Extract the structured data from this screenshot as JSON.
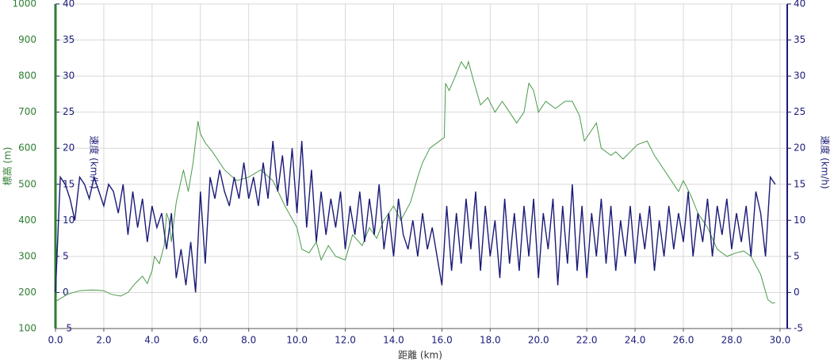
{
  "chart_data": {
    "type": "line",
    "x_label": "距離 (km)",
    "y_label": "標高 (m)",
    "y2_label": "速度 (km/h)",
    "xlim": [
      0,
      30.3
    ],
    "ylim": [
      100,
      1000
    ],
    "y2lim": [
      -5,
      40
    ],
    "xticks": [
      {
        "value": 0,
        "label": "0.0"
      },
      {
        "value": 2,
        "label": "2.0"
      },
      {
        "value": 4,
        "label": "4.0"
      },
      {
        "value": 6,
        "label": "6.0"
      },
      {
        "value": 8,
        "label": "8.0"
      },
      {
        "value": 10,
        "label": "10.0"
      },
      {
        "value": 12,
        "label": "12.0"
      },
      {
        "value": 14,
        "label": "14.0"
      },
      {
        "value": 16,
        "label": "16.0"
      },
      {
        "value": 18,
        "label": "18.0"
      },
      {
        "value": 20,
        "label": "20.0"
      },
      {
        "value": 22,
        "label": "22.0"
      },
      {
        "value": 24,
        "label": "24.0"
      },
      {
        "value": 26,
        "label": "26.0"
      },
      {
        "value": 28,
        "label": "28.0"
      },
      {
        "value": 30,
        "label": "30.0"
      }
    ],
    "yticks": [
      100,
      200,
      300,
      400,
      500,
      600,
      700,
      800,
      900,
      1000
    ],
    "y2ticks": [
      -5,
      0,
      5,
      10,
      15,
      20,
      25,
      30,
      35,
      40
    ],
    "grid": true,
    "series": [
      {
        "color": "#4a9a4a",
        "axis": "y",
        "x": [
          0,
          0.5,
          1.0,
          1.5,
          2.0,
          2.3,
          2.7,
          3.0,
          3.3,
          3.6,
          3.8,
          4.0,
          4.1,
          4.3,
          4.5,
          4.6,
          4.7,
          4.8,
          5.0,
          5.3,
          5.5,
          5.7,
          5.9,
          6.0,
          6.2,
          6.5,
          7.0,
          7.5,
          8.0,
          8.5,
          9.0,
          9.5,
          10.0,
          10.2,
          10.5,
          10.8,
          11.0,
          11.3,
          11.6,
          12.0,
          12.3,
          12.7,
          13.0,
          13.3,
          13.6,
          14.0,
          14.3,
          14.7,
          15.0,
          15.2,
          15.5,
          16.0,
          16.1,
          16.15,
          16.3,
          16.5,
          16.8,
          17.0,
          17.1,
          17.3,
          17.6,
          17.9,
          18.2,
          18.5,
          18.8,
          19.1,
          19.4,
          19.6,
          19.8,
          20.0,
          20.3,
          20.7,
          21.1,
          21.4,
          21.7,
          21.9,
          22.2,
          22.4,
          22.6,
          23.0,
          23.2,
          23.5,
          23.8,
          24.1,
          24.5,
          24.8,
          25.0,
          25.5,
          25.8,
          26.0,
          26.3,
          26.6,
          27.0,
          27.4,
          27.8,
          28.2,
          28.5,
          28.8,
          29.2,
          29.5,
          29.7,
          29.8
        ],
        "values": [
          175,
          195,
          205,
          207,
          205,
          195,
          190,
          200,
          225,
          245,
          225,
          260,
          300,
          280,
          330,
          420,
          400,
          340,
          450,
          540,
          480,
          560,
          675,
          640,
          615,
          590,
          540,
          510,
          520,
          540,
          510,
          440,
          380,
          320,
          310,
          340,
          290,
          330,
          300,
          290,
          360,
          330,
          380,
          350,
          400,
          440,
          400,
          450,
          520,
          560,
          600,
          625,
          630,
          780,
          760,
          790,
          840,
          820,
          840,
          790,
          720,
          740,
          700,
          730,
          700,
          670,
          700,
          780,
          760,
          700,
          730,
          710,
          730,
          730,
          690,
          620,
          650,
          670,
          600,
          580,
          590,
          570,
          590,
          610,
          620,
          580,
          560,
          510,
          480,
          510,
          470,
          420,
          380,
          320,
          300,
          310,
          315,
          300,
          250,
          180,
          170,
          172
        ]
      },
      {
        "color": "#1a1a78",
        "axis": "y2",
        "x": [
          0,
          0.2,
          0.4,
          0.6,
          0.8,
          1.0,
          1.2,
          1.4,
          1.6,
          1.8,
          2.0,
          2.2,
          2.4,
          2.6,
          2.8,
          3.0,
          3.2,
          3.4,
          3.6,
          3.8,
          4.0,
          4.2,
          4.4,
          4.6,
          4.8,
          5.0,
          5.2,
          5.4,
          5.6,
          5.8,
          6.0,
          6.2,
          6.4,
          6.6,
          6.8,
          7.0,
          7.2,
          7.4,
          7.6,
          7.8,
          8.0,
          8.2,
          8.4,
          8.6,
          8.8,
          9.0,
          9.2,
          9.4,
          9.6,
          9.8,
          10.0,
          10.2,
          10.4,
          10.6,
          10.8,
          11.0,
          11.2,
          11.4,
          11.6,
          11.8,
          12.0,
          12.2,
          12.4,
          12.6,
          12.8,
          13.0,
          13.2,
          13.4,
          13.6,
          13.8,
          14.0,
          14.2,
          14.4,
          14.6,
          14.8,
          15.0,
          15.2,
          15.4,
          15.6,
          15.8,
          16.0,
          16.2,
          16.4,
          16.6,
          16.8,
          17.0,
          17.2,
          17.4,
          17.6,
          17.8,
          18.0,
          18.2,
          18.4,
          18.6,
          18.8,
          19.0,
          19.2,
          19.4,
          19.6,
          19.8,
          20.0,
          20.2,
          20.4,
          20.6,
          20.8,
          21.0,
          21.2,
          21.4,
          21.6,
          21.8,
          22.0,
          22.2,
          22.4,
          22.6,
          22.8,
          23.0,
          23.2,
          23.4,
          23.6,
          23.8,
          24.0,
          24.2,
          24.4,
          24.6,
          24.8,
          25.0,
          25.2,
          25.4,
          25.6,
          25.8,
          26.0,
          26.2,
          26.4,
          26.6,
          26.8,
          27.0,
          27.2,
          27.4,
          27.6,
          27.8,
          28.0,
          28.2,
          28.4,
          28.6,
          28.8,
          29.0,
          29.2,
          29.4,
          29.6,
          29.8
        ],
        "values": [
          0,
          16,
          15,
          13,
          10,
          16,
          15,
          13,
          16,
          14,
          12,
          15,
          14,
          11,
          15,
          8,
          14,
          9,
          13,
          7,
          12,
          9,
          11,
          6,
          11,
          2,
          6,
          1,
          7,
          0,
          14,
          4,
          16,
          13,
          17,
          14,
          12,
          16,
          13,
          18,
          13,
          16,
          12,
          18,
          13,
          21,
          14,
          19,
          12,
          20,
          11,
          21,
          9,
          17,
          7,
          14,
          8,
          13,
          9,
          14,
          6,
          12,
          8,
          14,
          7,
          13,
          8,
          15,
          6,
          11,
          5,
          13,
          8,
          6,
          10,
          5,
          11,
          6,
          9,
          5,
          1,
          12,
          3,
          11,
          4,
          13,
          6,
          14,
          3,
          12,
          5,
          10,
          2,
          13,
          4,
          11,
          3,
          12,
          5,
          13,
          2,
          11,
          6,
          13,
          1,
          12,
          4,
          15,
          3,
          12,
          2,
          11,
          5,
          13,
          4,
          12,
          3,
          10,
          5,
          12,
          4,
          11,
          6,
          12,
          3,
          10,
          5,
          12,
          6,
          11,
          7,
          14,
          5,
          11,
          7,
          13,
          5,
          12,
          8,
          13,
          6,
          11,
          7,
          12,
          5,
          14,
          11,
          5,
          16,
          15
        ]
      }
    ]
  }
}
